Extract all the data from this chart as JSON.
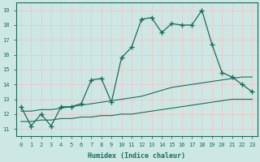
{
  "xlabel": "Humidex (Indice chaleur)",
  "bg_color": "#cde8e4",
  "grid_color": "#f0c8c8",
  "line_color": "#1a6b5a",
  "xlim": [
    -0.5,
    23.5
  ],
  "ylim": [
    10.5,
    19.5
  ],
  "xticks": [
    0,
    1,
    2,
    3,
    4,
    5,
    6,
    7,
    8,
    9,
    10,
    11,
    12,
    13,
    14,
    15,
    16,
    17,
    18,
    19,
    20,
    21,
    22,
    23
  ],
  "yticks": [
    11,
    12,
    13,
    14,
    15,
    16,
    17,
    18,
    19
  ],
  "main_x": [
    0,
    1,
    2,
    3,
    4,
    5,
    6,
    7,
    8,
    9,
    10,
    11,
    12,
    13,
    14,
    15,
    16,
    17,
    18,
    19,
    20,
    21,
    22,
    23
  ],
  "main_y": [
    12.5,
    11.2,
    12.0,
    11.2,
    12.5,
    12.5,
    12.7,
    14.3,
    14.4,
    12.8,
    15.8,
    16.5,
    18.4,
    18.5,
    17.5,
    18.1,
    18.0,
    18.0,
    19.0,
    16.7,
    14.8,
    14.5,
    14.0,
    13.5
  ],
  "line2_x": [
    0,
    1,
    2,
    3,
    4,
    5,
    6,
    7,
    8,
    9,
    10,
    11,
    12,
    13,
    14,
    15,
    16,
    17,
    18,
    19,
    20,
    21,
    22,
    23
  ],
  "line2_y": [
    11.5,
    11.5,
    11.6,
    11.6,
    11.7,
    11.7,
    11.8,
    11.8,
    11.9,
    11.9,
    12.0,
    12.0,
    12.1,
    12.2,
    12.3,
    12.4,
    12.5,
    12.6,
    12.7,
    12.8,
    12.9,
    13.0,
    13.0,
    13.0
  ],
  "line3_x": [
    0,
    1,
    2,
    3,
    4,
    5,
    6,
    7,
    8,
    9,
    10,
    11,
    12,
    13,
    14,
    15,
    16,
    17,
    18,
    19,
    20,
    21,
    22,
    23
  ],
  "line3_y": [
    12.2,
    12.2,
    12.3,
    12.3,
    12.4,
    12.5,
    12.6,
    12.7,
    12.8,
    12.9,
    13.0,
    13.1,
    13.2,
    13.4,
    13.6,
    13.8,
    13.9,
    14.0,
    14.1,
    14.2,
    14.3,
    14.4,
    14.5,
    14.5
  ]
}
